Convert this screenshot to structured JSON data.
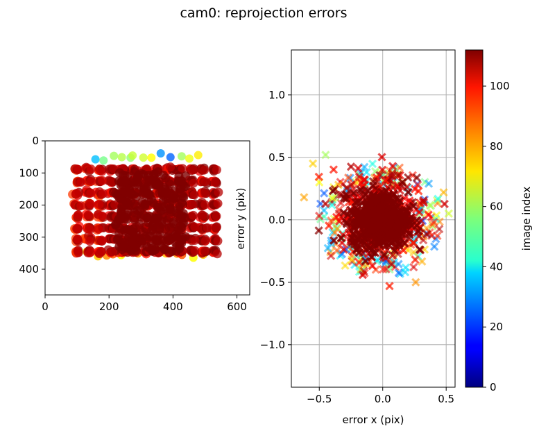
{
  "figure": {
    "title": "cam0: reprojection errors"
  },
  "chart_data": [
    {
      "type": "scatter",
      "panel": "left",
      "description_of_marks": "reprojected corner points of a calibration target grid across images, colored by image index",
      "xlabel": "",
      "ylabel": "",
      "xlim": [
        0,
        640
      ],
      "ylim": [
        480,
        0
      ],
      "y_inverted": true,
      "x_ticks": [
        0,
        200,
        400,
        600
      ],
      "y_ticks": [
        0,
        100,
        200,
        300,
        400
      ],
      "grid": false,
      "marker": "circle",
      "grid_points": {
        "x_range": [
          100,
          530
        ],
        "y_range": [
          90,
          345
        ],
        "columns": 13,
        "rows": 8
      },
      "top_edge_points_y": 40
    },
    {
      "type": "scatter",
      "panel": "right",
      "xlabel": "error x (pix)",
      "ylabel": "error y (pix)",
      "xlim": [
        -0.72,
        0.57
      ],
      "ylim": [
        -1.34,
        1.36
      ],
      "x_ticks": [
        -0.5,
        0.0,
        0.5
      ],
      "y_ticks": [
        -1.0,
        -0.5,
        0.0,
        0.5,
        1.0
      ],
      "x_tick_labels": [
        "−0.5",
        "0.0",
        "0.5"
      ],
      "y_tick_labels": [
        "−1.0",
        "−0.5",
        "0.0",
        "0.5",
        "1.0"
      ],
      "grid": true,
      "marker": "x",
      "error_cloud": {
        "center": [
          -0.02,
          0.0
        ],
        "spread_x": [
          -0.4,
          0.5
        ],
        "spread_y": [
          -0.48,
          0.42
        ],
        "outliers": [
          [
            -0.55,
            0.45
          ],
          [
            -0.62,
            0.18
          ],
          [
            -0.45,
            0.52
          ],
          [
            -0.5,
            0.3
          ],
          [
            0.52,
            0.05
          ],
          [
            0.48,
            0.22
          ],
          [
            0.26,
            -0.5
          ]
        ]
      }
    }
  ],
  "colorbar": {
    "label": "image index",
    "ticks": [
      0,
      20,
      40,
      60,
      80,
      100
    ],
    "range": [
      0,
      112
    ],
    "colormap": "jet"
  }
}
